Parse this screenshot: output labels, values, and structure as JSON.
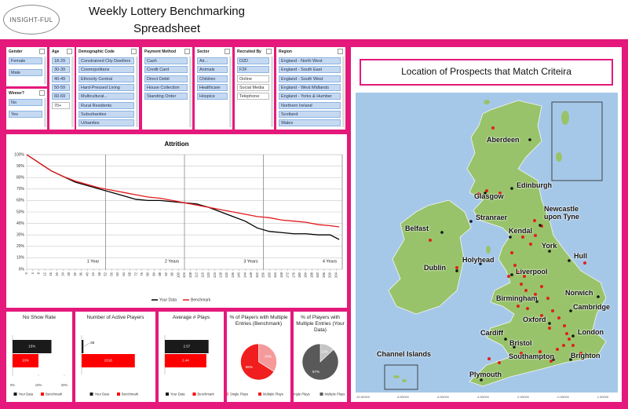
{
  "header": {
    "logo": "INSIGHT-FUL",
    "title": "Weekly Lottery Benchmarking Spreadsheet"
  },
  "slicers": [
    {
      "title": "Gender",
      "items": [
        {
          "label": "Female",
          "selected": true
        },
        {
          "label": "Male",
          "selected": true
        }
      ]
    },
    {
      "title": "Winner?",
      "items": [
        {
          "label": "No",
          "selected": true
        },
        {
          "label": "Yes",
          "selected": true
        }
      ]
    },
    {
      "title": "Age",
      "items": [
        {
          "label": "18-29",
          "selected": true
        },
        {
          "label": "30-39",
          "selected": true
        },
        {
          "label": "40-49",
          "selected": true
        },
        {
          "label": "50-59",
          "selected": true
        },
        {
          "label": "60-69",
          "selected": true
        },
        {
          "label": "70+",
          "selected": false
        }
      ]
    },
    {
      "title": "Demographic Code",
      "items": [
        {
          "label": "Constrained City Dwellers",
          "selected": true
        },
        {
          "label": "Cosmopolitans",
          "selected": true
        },
        {
          "label": "Ethnicity Central",
          "selected": true
        },
        {
          "label": "Hard-Pressed Living",
          "selected": true
        },
        {
          "label": "Multicultural...",
          "selected": true
        },
        {
          "label": "Rural Residents",
          "selected": true
        },
        {
          "label": "Suburbanites",
          "selected": true
        },
        {
          "label": "Urbanites",
          "selected": true
        }
      ]
    },
    {
      "title": "Payment Method",
      "items": [
        {
          "label": "Cash",
          "selected": true
        },
        {
          "label": "Credit Card",
          "selected": true
        },
        {
          "label": "Direct Debit",
          "selected": true
        },
        {
          "label": "House Collection",
          "selected": true
        },
        {
          "label": "Standing Order",
          "selected": true
        }
      ]
    },
    {
      "title": "Sector",
      "items": [
        {
          "label": "Air...",
          "selected": true
        },
        {
          "label": "Animals",
          "selected": true
        },
        {
          "label": "Children",
          "selected": true
        },
        {
          "label": "Healthcare",
          "selected": true
        },
        {
          "label": "Hospice",
          "selected": true
        }
      ]
    },
    {
      "title": "Recruited By",
      "items": [
        {
          "label": "D2D",
          "selected": true
        },
        {
          "label": "F2F",
          "selected": true
        },
        {
          "label": "Online",
          "selected": false
        },
        {
          "label": "Social Media",
          "selected": false
        },
        {
          "label": "Telephone",
          "selected": false
        }
      ]
    },
    {
      "title": "Region",
      "items": [
        {
          "label": "England - North West",
          "selected": true
        },
        {
          "label": "England - South East",
          "selected": true
        },
        {
          "label": "England - South West",
          "selected": true
        },
        {
          "label": "England - West Midlands",
          "selected": true
        },
        {
          "label": "England - Yorks & Humber",
          "selected": true
        },
        {
          "label": "Northern Ireland",
          "selected": true
        },
        {
          "label": "Scotland",
          "selected": true
        },
        {
          "label": "Wales",
          "selected": true
        }
      ]
    }
  ],
  "chart_data": [
    {
      "type": "line",
      "title": "Attrition",
      "x": [
        0,
        8,
        16,
        24,
        32,
        40,
        48,
        56,
        64,
        72,
        80,
        88,
        96,
        104,
        112,
        120,
        128,
        136,
        144,
        152,
        160,
        168,
        176,
        184,
        192,
        200,
        206
      ],
      "series": [
        {
          "name": "Your Data",
          "color": "#000000",
          "values": [
            100,
            93,
            86,
            81,
            76,
            73,
            70,
            67,
            64,
            61,
            60,
            60,
            59,
            58,
            57,
            54,
            50,
            46,
            42,
            36,
            33,
            32,
            31,
            31,
            30,
            30,
            26
          ]
        },
        {
          "name": "Benchmark",
          "color": "#e31a1c",
          "values": [
            100,
            93,
            86,
            81,
            77,
            74,
            71,
            69,
            67,
            65,
            63,
            62,
            60,
            58,
            56,
            54,
            52,
            50,
            48,
            46,
            45,
            43,
            42,
            41,
            39,
            38,
            37
          ]
        }
      ],
      "xlim": [
        0,
        208
      ],
      "xticks": [
        0,
        4,
        8,
        12,
        16,
        20,
        24,
        28,
        32,
        36,
        40,
        44,
        48,
        52,
        56,
        60,
        64,
        68,
        72,
        76,
        80,
        84,
        88,
        92,
        96,
        100,
        104,
        108,
        112,
        116,
        120,
        124,
        128,
        132,
        136,
        140,
        144,
        148,
        152,
        156,
        160,
        164,
        168,
        172,
        176,
        180,
        184,
        188,
        192,
        196,
        200,
        204
      ],
      "ylim": [
        0,
        100
      ],
      "yticks": [
        {
          "value": 0,
          "label": "0%"
        },
        {
          "value": 10,
          "label": "10%"
        },
        {
          "value": 20,
          "label": "20%"
        },
        {
          "value": 30,
          "label": "30%"
        },
        {
          "value": 40,
          "label": "40%"
        },
        {
          "value": 50,
          "label": "50%"
        },
        {
          "value": 60,
          "label": "60%"
        },
        {
          "value": 70,
          "label": "70%"
        },
        {
          "value": 80,
          "label": "80%"
        },
        {
          "value": 90,
          "label": "90%"
        },
        {
          "value": 100,
          "label": "100%"
        }
      ],
      "grid": true,
      "legend": "bottom",
      "annotations": [
        {
          "x": 52,
          "label": "1 Year"
        },
        {
          "x": 104,
          "label": "2 Years"
        },
        {
          "x": 156,
          "label": "3 Years"
        },
        {
          "x": 208,
          "label": "4 Years"
        }
      ]
    },
    {
      "type": "bar",
      "orientation": "horizontal",
      "title": "No Show Rate",
      "series": [
        {
          "name": "Your Data",
          "color": "#1a1a1a",
          "values": [
            15
          ],
          "value_labels": [
            "15%"
          ]
        },
        {
          "name": "Benchmark",
          "color": "#ff0000",
          "values": [
            10
          ],
          "value_labels": [
            "10%"
          ]
        }
      ],
      "xlim": [
        0,
        20
      ],
      "xticks": [
        {
          "value": 0,
          "label": "0%"
        },
        {
          "value": 10,
          "label": "10%"
        },
        {
          "value": 20,
          "label": "20%"
        }
      ]
    },
    {
      "type": "bar",
      "orientation": "horizontal",
      "title": "Number of Active Players",
      "series": [
        {
          "name": "Your Data",
          "color": "#1a1a1a",
          "values": [
            68
          ]
        },
        {
          "name": "Benchmark",
          "color": "#ff0000",
          "values": [
            2016
          ]
        }
      ],
      "xlim": [
        0,
        2500
      ]
    },
    {
      "type": "bar",
      "orientation": "horizontal",
      "title": "Average # Plays",
      "series": [
        {
          "name": "Your Data",
          "color": "#1a1a1a",
          "values": [
            2.57
          ]
        },
        {
          "name": "Benchmark",
          "color": "#ff0000",
          "values": [
            2.44
          ]
        }
      ],
      "xlim": [
        0,
        3
      ]
    },
    {
      "type": "pie",
      "title": "% of Players with Multiple Entries (Benchmark)",
      "categories": [
        "Single Plays",
        "Multiple Plays"
      ],
      "values": [
        34,
        66
      ],
      "value_labels": [
        "34%",
        "66%"
      ],
      "colors": [
        "#f59a9a",
        "#f01e1e"
      ]
    },
    {
      "type": "pie",
      "title": "% of Players with Multiple Entries (Your Data)",
      "categories": [
        "Single Plays",
        "Multiple Plays"
      ],
      "values": [
        13,
        87
      ],
      "value_labels": [
        "13%",
        "87%"
      ],
      "colors": [
        "#c4c4c4",
        "#595959"
      ]
    }
  ],
  "map": {
    "title": "Location of Prospects that Match Criteira",
    "cities": [
      "Aberdeen",
      "Edinburgh",
      "Glasgow",
      "Stranraer",
      "Newcastle upon Tyne",
      "Belfast",
      "Kendal",
      "York",
      "Hull",
      "Dublin",
      "Holyhead",
      "Liverpool",
      "Birmingham",
      "Norwich",
      "Cambridge",
      "Oxford",
      "Cardiff",
      "Bristol",
      "London",
      "Southampton",
      "Brighton",
      "Plymouth",
      "Channel Islands"
    ],
    "longitude_labels": [
      "-10.50000",
      "-8.50000",
      "-6.50000",
      "-4.50000",
      "-2.50000",
      "-0.50000",
      "1.50000"
    ]
  }
}
